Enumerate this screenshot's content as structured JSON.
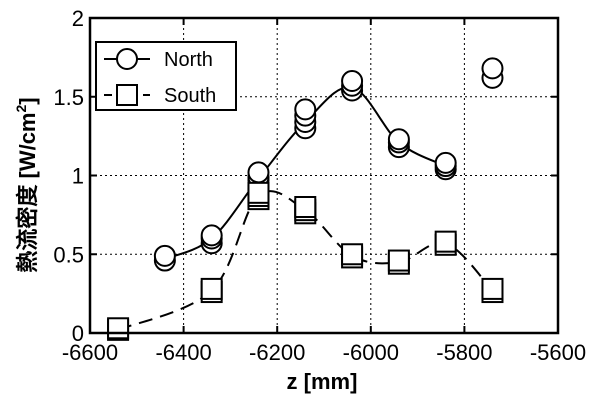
{
  "chart_data": {
    "type": "scatter",
    "xlabel": "z [mm]",
    "ylabel_prefix": "熱流密度 [W/cm",
    "ylabel_sup": "2",
    "ylabel_suffix": "]",
    "xlim": [
      -6600,
      -5600
    ],
    "ylim": [
      0,
      2
    ],
    "xticks": [
      -6600,
      -6400,
      -6200,
      -6000,
      -5800,
      -5600
    ],
    "yticks": [
      0,
      0.5,
      1,
      1.5,
      2
    ],
    "xtick_labels": [
      "-6600",
      "-6400",
      "-6200",
      "-6000",
      "-5800",
      "-5600"
    ],
    "ytick_labels": [
      "0",
      "0.5",
      "1",
      "1.5",
      "2"
    ],
    "grid": true,
    "legend_position": "top-left",
    "series": [
      {
        "name": "North",
        "marker": "circle",
        "line": "solid",
        "points": [
          [
            -6440,
            0.46
          ],
          [
            -6440,
            0.49
          ],
          [
            -6340,
            0.57
          ],
          [
            -6340,
            0.6
          ],
          [
            -6340,
            0.62
          ],
          [
            -6240,
            0.94
          ],
          [
            -6240,
            0.97
          ],
          [
            -6240,
            0.99
          ],
          [
            -6240,
            1.02
          ],
          [
            -6140,
            1.3
          ],
          [
            -6140,
            1.34
          ],
          [
            -6140,
            1.38
          ],
          [
            -6140,
            1.42
          ],
          [
            -6040,
            1.54
          ],
          [
            -6040,
            1.57
          ],
          [
            -6040,
            1.6
          ],
          [
            -5940,
            1.18
          ],
          [
            -5940,
            1.21
          ],
          [
            -5940,
            1.23
          ],
          [
            -5840,
            1.04
          ],
          [
            -5840,
            1.06
          ],
          [
            -5840,
            1.08
          ],
          [
            -5740,
            1.62
          ],
          [
            -5740,
            1.68
          ]
        ],
        "curve": [
          [
            -6440,
            0.47
          ],
          [
            -6340,
            0.6
          ],
          [
            -6240,
            0.98
          ],
          [
            -6140,
            1.34
          ],
          [
            -6040,
            1.56
          ],
          [
            -5940,
            1.21
          ],
          [
            -5840,
            1.06
          ]
        ]
      },
      {
        "name": "South",
        "marker": "square",
        "line": "dashed",
        "points": [
          [
            -6540,
            0.02
          ],
          [
            -6540,
            0.03
          ],
          [
            -6340,
            0.26
          ],
          [
            -6340,
            0.28
          ],
          [
            -6240,
            0.85
          ],
          [
            -6240,
            0.87
          ],
          [
            -6240,
            0.89
          ],
          [
            -6140,
            0.76
          ],
          [
            -6140,
            0.78
          ],
          [
            -6140,
            0.8
          ],
          [
            -6040,
            0.48
          ],
          [
            -6040,
            0.5
          ],
          [
            -5940,
            0.44
          ],
          [
            -5940,
            0.46
          ],
          [
            -5840,
            0.56
          ],
          [
            -5840,
            0.58
          ],
          [
            -5740,
            0.26
          ],
          [
            -5740,
            0.28
          ]
        ],
        "curve": [
          [
            -6540,
            0.02
          ],
          [
            -6340,
            0.27
          ],
          [
            -6240,
            0.87
          ],
          [
            -6140,
            0.78
          ],
          [
            -6040,
            0.49
          ],
          [
            -5940,
            0.45
          ],
          [
            -5840,
            0.57
          ],
          [
            -5740,
            0.27
          ]
        ]
      }
    ]
  }
}
